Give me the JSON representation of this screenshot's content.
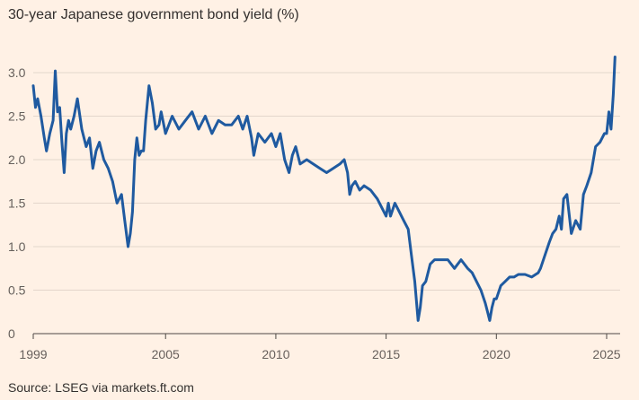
{
  "colors": {
    "background": "#fff1e5",
    "line": "#1f5aa0",
    "grid": "#e3d6cb",
    "axis": "#4d4845",
    "text": "#66605c"
  },
  "chart_data": {
    "type": "line",
    "title": "30-year Japanese government bond yield (%)",
    "source": "Source: LSEG via markets.ft.com",
    "xlabel": "",
    "ylabel": "",
    "xlim": [
      1999.0,
      2025.5
    ],
    "ylim": [
      0,
      3.2
    ],
    "grid": true,
    "x_ticks": [
      1999,
      2005,
      2010,
      2015,
      2020,
      2025
    ],
    "x_tick_labels": [
      "1999",
      "2005",
      "2010",
      "2015",
      "2020",
      "2025"
    ],
    "y_ticks": [
      0,
      0.5,
      1.0,
      1.5,
      2.0,
      2.5,
      3.0
    ],
    "y_tick_labels": [
      "0",
      "0.5",
      "1.0",
      "1.5",
      "2.0",
      "2.5",
      "3.0"
    ],
    "series": [
      {
        "name": "",
        "x": [
          1999.0,
          1999.1,
          1999.2,
          1999.35,
          1999.5,
          1999.6,
          1999.75,
          1999.9,
          2000.0,
          2000.1,
          2000.2,
          2000.3,
          2000.4,
          2000.5,
          2000.6,
          2000.7,
          2000.85,
          2001.0,
          2001.2,
          2001.4,
          2001.55,
          2001.7,
          2001.85,
          2002.0,
          2002.2,
          2002.4,
          2002.6,
          2002.8,
          2003.0,
          2003.15,
          2003.3,
          2003.4,
          2003.5,
          2003.6,
          2003.7,
          2003.8,
          2003.9,
          2004.0,
          2004.1,
          2004.25,
          2004.4,
          2004.55,
          2004.7,
          2004.8,
          2005.0,
          2005.3,
          2005.6,
          2005.9,
          2006.2,
          2006.5,
          2006.8,
          2007.1,
          2007.4,
          2007.7,
          2008.0,
          2008.3,
          2008.5,
          2008.7,
          2008.9,
          2009.0,
          2009.2,
          2009.5,
          2009.8,
          2010.0,
          2010.2,
          2010.4,
          2010.6,
          2010.75,
          2010.9,
          2011.1,
          2011.4,
          2011.7,
          2012.0,
          2012.3,
          2012.6,
          2012.9,
          2013.1,
          2013.25,
          2013.35,
          2013.45,
          2013.6,
          2013.8,
          2014.0,
          2014.3,
          2014.6,
          2014.9,
          2015.0,
          2015.1,
          2015.2,
          2015.4,
          2015.6,
          2015.8,
          2016.0,
          2016.15,
          2016.3,
          2016.45,
          2016.55,
          2016.65,
          2016.8,
          2017.0,
          2017.2,
          2017.5,
          2017.8,
          2018.1,
          2018.4,
          2018.7,
          2018.9,
          2019.1,
          2019.3,
          2019.5,
          2019.6,
          2019.7,
          2019.8,
          2019.9,
          2020.0,
          2020.2,
          2020.4,
          2020.6,
          2020.8,
          2021.0,
          2021.3,
          2021.6,
          2021.9,
          2022.0,
          2022.2,
          2022.4,
          2022.55,
          2022.7,
          2022.85,
          2022.95,
          2023.05,
          2023.2,
          2023.4,
          2023.6,
          2023.8,
          2023.95,
          2024.1,
          2024.3,
          2024.5,
          2024.7,
          2024.9,
          2025.0,
          2025.1,
          2025.2,
          2025.3,
          2025.38
        ],
        "y": [
          2.85,
          2.6,
          2.7,
          2.5,
          2.25,
          2.1,
          2.3,
          2.45,
          3.02,
          2.55,
          2.6,
          2.2,
          1.85,
          2.3,
          2.45,
          2.35,
          2.5,
          2.7,
          2.35,
          2.15,
          2.25,
          1.9,
          2.1,
          2.2,
          2.0,
          1.9,
          1.75,
          1.5,
          1.6,
          1.3,
          1.0,
          1.15,
          1.4,
          2.0,
          2.25,
          2.05,
          2.1,
          2.1,
          2.45,
          2.85,
          2.65,
          2.35,
          2.4,
          2.55,
          2.3,
          2.5,
          2.35,
          2.45,
          2.55,
          2.35,
          2.5,
          2.3,
          2.45,
          2.4,
          2.4,
          2.5,
          2.35,
          2.5,
          2.25,
          2.05,
          2.3,
          2.2,
          2.3,
          2.15,
          2.3,
          2.0,
          1.85,
          2.05,
          2.15,
          1.95,
          2.0,
          1.95,
          1.9,
          1.85,
          1.9,
          1.95,
          2.0,
          1.85,
          1.6,
          1.7,
          1.75,
          1.65,
          1.7,
          1.65,
          1.55,
          1.4,
          1.35,
          1.5,
          1.35,
          1.5,
          1.4,
          1.3,
          1.2,
          0.9,
          0.6,
          0.15,
          0.3,
          0.55,
          0.6,
          0.8,
          0.85,
          0.85,
          0.85,
          0.75,
          0.85,
          0.75,
          0.7,
          0.6,
          0.5,
          0.35,
          0.25,
          0.15,
          0.3,
          0.4,
          0.4,
          0.55,
          0.6,
          0.65,
          0.65,
          0.68,
          0.68,
          0.65,
          0.7,
          0.75,
          0.9,
          1.05,
          1.15,
          1.2,
          1.35,
          1.2,
          1.55,
          1.6,
          1.15,
          1.3,
          1.2,
          1.6,
          1.7,
          1.85,
          2.15,
          2.2,
          2.3,
          2.3,
          2.55,
          2.35,
          2.75,
          3.18
        ]
      }
    ]
  }
}
